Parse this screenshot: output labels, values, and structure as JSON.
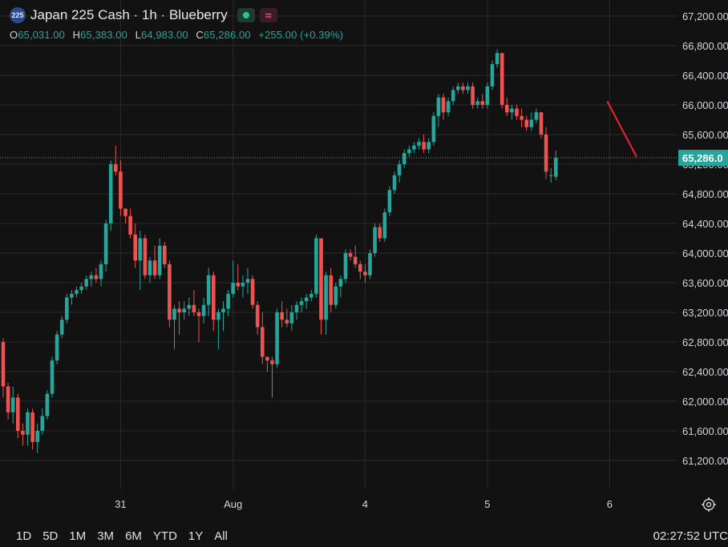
{
  "header": {
    "symbol_badge": "225",
    "title": "Japan 225 Cash · 1h · Blueberry",
    "ohlc": {
      "o_label": "O",
      "o": "65,031.00",
      "h_label": "H",
      "h": "65,383.00",
      "l_label": "L",
      "l": "64,983.00",
      "c_label": "C",
      "c": "65,286.00",
      "change": "+255.00 (+0.39%)"
    },
    "live_dot_color": "#30c48d",
    "indicator_icon": "wave-icon"
  },
  "colors": {
    "up": "#26a69a",
    "down": "#ef5350",
    "background": "#121212",
    "grid": "#2a2a2a",
    "price_label_bg": "#26a69a",
    "trendline": "#e0242f"
  },
  "chart_data": {
    "type": "candlestick",
    "ylim": [
      60800,
      67400
    ],
    "y_ticks": [
      "67,200.00",
      "66,800.00",
      "66,400.00",
      "66,000.00",
      "65,600.00",
      "65,200.00",
      "64,800.00",
      "64,400.00",
      "64,000.00",
      "63,600.00",
      "63,200.00",
      "62,800.00",
      "62,400.00",
      "62,000.00",
      "61,600.00",
      "61,200.00"
    ],
    "y_tick_values": [
      67200,
      66800,
      66400,
      66000,
      65600,
      65200,
      64800,
      64400,
      64000,
      63600,
      63200,
      62800,
      62400,
      62000,
      61600,
      61200
    ],
    "x_tick_labels": [
      "31",
      "Aug",
      "4",
      "5",
      "6"
    ],
    "x_tick_bars": [
      24,
      47,
      74,
      99,
      124
    ],
    "current_price": 65286,
    "current_price_label": "65,286.0",
    "trendline": {
      "from_bar": 123.5,
      "from_price": 66050,
      "to_bar": 129.5,
      "to_price": 65300
    },
    "candles": [
      [
        62800,
        62850,
        62050,
        62200
      ],
      [
        62200,
        62250,
        61750,
        61850
      ],
      [
        61850,
        62200,
        61700,
        62050
      ],
      [
        62050,
        62100,
        61500,
        61600
      ],
      [
        61600,
        61700,
        61400,
        61550
      ],
      [
        61550,
        61900,
        61400,
        61850
      ],
      [
        61850,
        61900,
        61350,
        61450
      ],
      [
        61450,
        61700,
        61300,
        61600
      ],
      [
        61600,
        61900,
        61550,
        61800
      ],
      [
        61800,
        62150,
        61750,
        62100
      ],
      [
        62100,
        62600,
        62050,
        62550
      ],
      [
        62550,
        62950,
        62500,
        62900
      ],
      [
        62900,
        63150,
        62850,
        63100
      ],
      [
        63100,
        63450,
        63050,
        63400
      ],
      [
        63400,
        63500,
        63300,
        63450
      ],
      [
        63450,
        63550,
        63400,
        63500
      ],
      [
        63500,
        63600,
        63450,
        63550
      ],
      [
        63550,
        63700,
        63500,
        63650
      ],
      [
        63650,
        63750,
        63550,
        63700
      ],
      [
        63700,
        63800,
        63600,
        63650
      ],
      [
        63650,
        63900,
        63550,
        63850
      ],
      [
        63850,
        64450,
        63750,
        64400
      ],
      [
        64400,
        65250,
        64300,
        65200
      ],
      [
        65200,
        65450,
        65050,
        65100
      ],
      [
        65100,
        65250,
        64500,
        64600
      ],
      [
        64600,
        64600,
        64400,
        64500
      ],
      [
        64500,
        64600,
        64200,
        64250
      ],
      [
        64250,
        64400,
        63800,
        63900
      ],
      [
        63900,
        64300,
        63500,
        64200
      ],
      [
        64200,
        64250,
        63650,
        63700
      ],
      [
        63700,
        63950,
        63600,
        63900
      ],
      [
        63900,
        64100,
        63650,
        63700
      ],
      [
        63700,
        64200,
        63650,
        64100
      ],
      [
        64100,
        64150,
        63800,
        63850
      ],
      [
        63850,
        63900,
        63000,
        63100
      ],
      [
        63100,
        63300,
        62700,
        63250
      ],
      [
        63250,
        63350,
        62900,
        63200
      ],
      [
        63200,
        63350,
        63100,
        63250
      ],
      [
        63250,
        63400,
        63150,
        63300
      ],
      [
        63300,
        63500,
        63150,
        63200
      ],
      [
        63200,
        63250,
        62800,
        63150
      ],
      [
        63150,
        63400,
        63050,
        63300
      ],
      [
        63300,
        63800,
        63150,
        63700
      ],
      [
        63700,
        63750,
        62950,
        63100
      ],
      [
        63100,
        63250,
        62700,
        63200
      ],
      [
        63200,
        63350,
        62950,
        63250
      ],
      [
        63250,
        63500,
        63150,
        63450
      ],
      [
        63450,
        63900,
        63400,
        63600
      ],
      [
        63600,
        63850,
        63500,
        63550
      ],
      [
        63550,
        63700,
        63400,
        63600
      ],
      [
        63600,
        63800,
        63450,
        63650
      ],
      [
        63650,
        63700,
        63250,
        63300
      ],
      [
        63300,
        63350,
        62900,
        63000
      ],
      [
        63000,
        63200,
        62500,
        62600
      ],
      [
        62600,
        62600,
        62400,
        62550
      ],
      [
        62550,
        62600,
        62050,
        62500
      ],
      [
        62500,
        63250,
        62450,
        63200
      ],
      [
        63200,
        63350,
        63000,
        63100
      ],
      [
        63100,
        63250,
        63000,
        63050
      ],
      [
        63050,
        63300,
        62950,
        63200
      ],
      [
        63200,
        63350,
        63100,
        63300
      ],
      [
        63300,
        63400,
        63200,
        63350
      ],
      [
        63350,
        63450,
        63250,
        63400
      ],
      [
        63400,
        63500,
        63350,
        63450
      ],
      [
        63450,
        64250,
        63400,
        64200
      ],
      [
        64200,
        64200,
        62900,
        63100
      ],
      [
        63100,
        63750,
        62900,
        63700
      ],
      [
        63700,
        63800,
        63200,
        63300
      ],
      [
        63300,
        63600,
        63250,
        63550
      ],
      [
        63550,
        63700,
        63400,
        63650
      ],
      [
        63650,
        64050,
        63600,
        64000
      ],
      [
        64000,
        64050,
        63900,
        63950
      ],
      [
        63950,
        64100,
        63800,
        63850
      ],
      [
        63850,
        63900,
        63650,
        63750
      ],
      [
        63750,
        63850,
        63600,
        63700
      ],
      [
        63700,
        64050,
        63650,
        64000
      ],
      [
        64000,
        64400,
        63950,
        64350
      ],
      [
        64350,
        64400,
        64150,
        64200
      ],
      [
        64200,
        64600,
        64150,
        64550
      ],
      [
        64550,
        64900,
        64500,
        64850
      ],
      [
        64850,
        65100,
        64800,
        65050
      ],
      [
        65050,
        65250,
        64950,
        65200
      ],
      [
        65200,
        65400,
        65150,
        65350
      ],
      [
        65350,
        65450,
        65300,
        65400
      ],
      [
        65400,
        65500,
        65350,
        65450
      ],
      [
        65450,
        65550,
        65400,
        65500
      ],
      [
        65500,
        65600,
        65350,
        65400
      ],
      [
        65400,
        65550,
        65350,
        65500
      ],
      [
        65500,
        65900,
        65450,
        65850
      ],
      [
        65850,
        66150,
        65700,
        66100
      ],
      [
        66100,
        66150,
        65800,
        65900
      ],
      [
        65900,
        66100,
        65850,
        66050
      ],
      [
        66050,
        66250,
        66000,
        66200
      ],
      [
        66200,
        66300,
        66150,
        66250
      ],
      [
        66250,
        66300,
        66150,
        66200
      ],
      [
        66200,
        66300,
        66150,
        66250
      ],
      [
        66250,
        66300,
        65950,
        66000
      ],
      [
        66000,
        66100,
        65950,
        66050
      ],
      [
        66050,
        66150,
        65950,
        66000
      ],
      [
        66000,
        66300,
        65950,
        66250
      ],
      [
        66250,
        66600,
        66200,
        66550
      ],
      [
        66550,
        66750,
        66500,
        66700
      ],
      [
        66700,
        66700,
        65950,
        66000
      ],
      [
        66000,
        66100,
        65850,
        65900
      ],
      [
        65900,
        66000,
        65800,
        65950
      ],
      [
        65950,
        66000,
        65800,
        65850
      ],
      [
        65850,
        65950,
        65700,
        65800
      ],
      [
        65800,
        65850,
        65650,
        65700
      ],
      [
        65700,
        65900,
        65650,
        65800
      ],
      [
        65800,
        65950,
        65750,
        65900
      ],
      [
        65900,
        65900,
        65550,
        65600
      ],
      [
        65600,
        65700,
        65000,
        65100
      ],
      [
        65050,
        65150,
        64950,
        65050
      ],
      [
        65031,
        65383,
        64983,
        65286
      ]
    ]
  },
  "bottom": {
    "ranges": [
      "1D",
      "5D",
      "1M",
      "3M",
      "6M",
      "YTD",
      "1Y",
      "All"
    ],
    "clock": "02:27:52 UTC"
  }
}
